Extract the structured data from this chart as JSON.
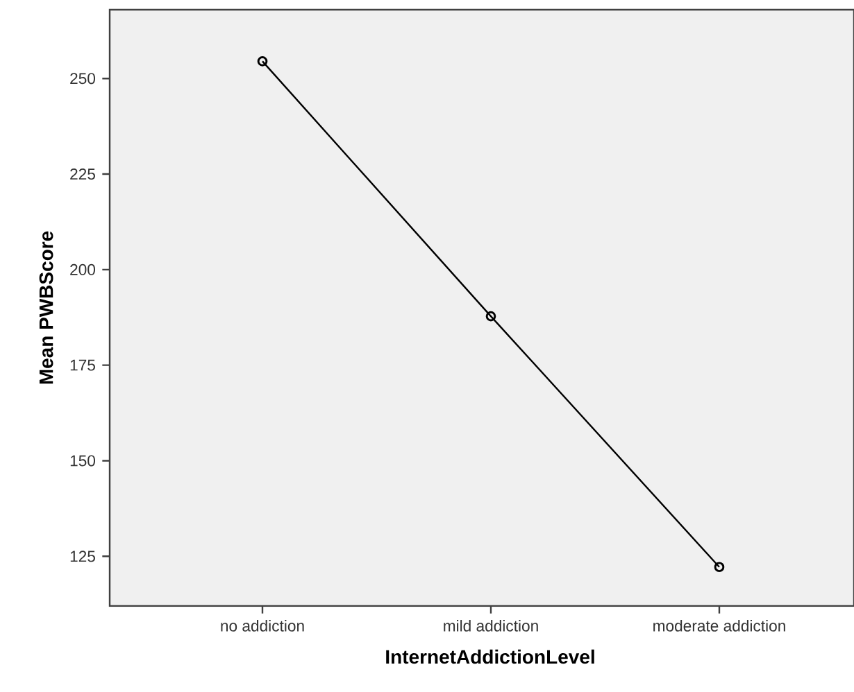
{
  "chart_data": {
    "type": "line",
    "xlabel": "InternetAddictionLevel",
    "ylabel": "Mean PWBScore",
    "categories": [
      "no addiction",
      "mild addiction",
      "moderate addiction"
    ],
    "series": [
      {
        "color": "#000000",
        "values": [
          254.5,
          187.8,
          122.2
        ]
      }
    ],
    "ylim": [
      112,
      268
    ],
    "yticks": [
      125,
      150,
      175,
      200,
      225,
      250
    ],
    "grid": false,
    "legend": false,
    "marker": "circle",
    "line_style": "solid"
  }
}
